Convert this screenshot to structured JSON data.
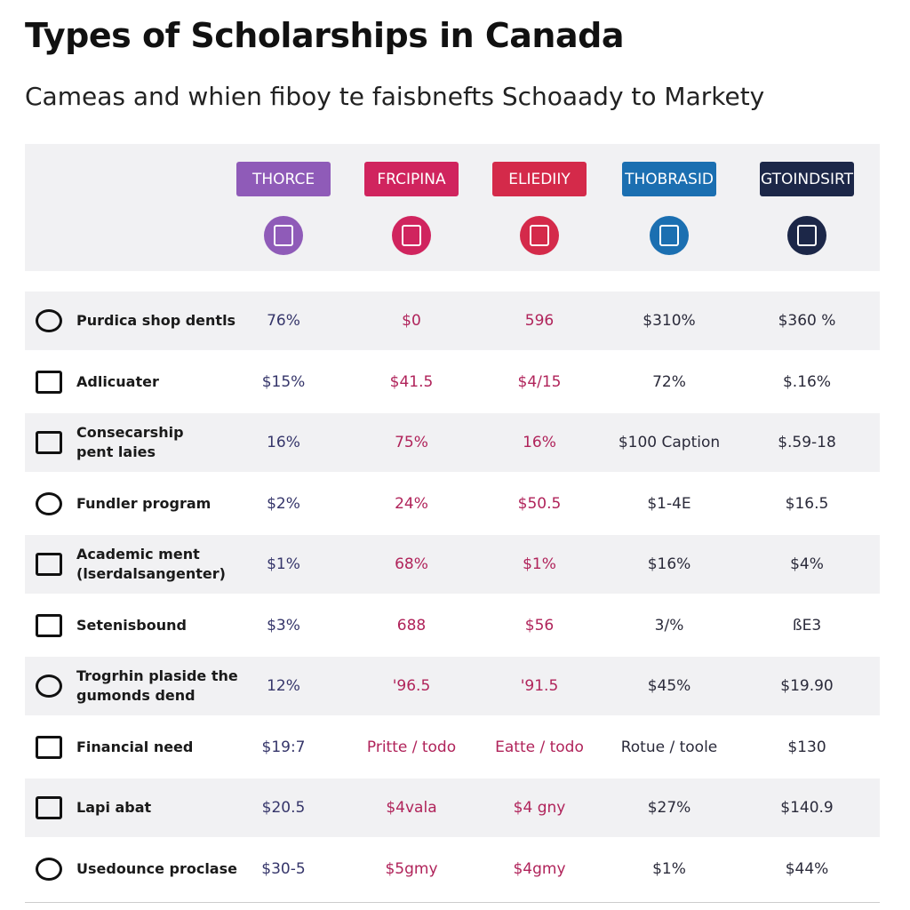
{
  "header": {
    "title": "Types of Scholarships in Canada",
    "subtitle": "Cameas and whien fiboy te faisbnefts Schoaady to Markety"
  },
  "table": {
    "columns": [
      {
        "label": "THORCE",
        "color": "#8f5bb8",
        "text_color": "#35356a"
      },
      {
        "label": "FRCIPINA",
        "color": "#d0245e",
        "text_color": "#b0235a"
      },
      {
        "label": "ELIEDIIY",
        "color": "#d42a4a",
        "text_color": "#b0235a"
      },
      {
        "label": "THOBRASID",
        "color": "#1b6fb1",
        "text_color": "#2a2a3a"
      },
      {
        "label": "GTOINDSIRT",
        "color": "#1c2748",
        "text_color": "#2a2a3a"
      }
    ],
    "rows": [
      {
        "label": [
          "Purdica shop dentls"
        ],
        "cells": [
          "76%",
          "$0",
          "596",
          "$310%",
          "$360 %"
        ]
      },
      {
        "label": [
          "Adlicuater"
        ],
        "cells": [
          "$15%",
          "$41.5",
          "$4/15",
          "72%",
          "$.16%"
        ]
      },
      {
        "label": [
          "Consecarship",
          "pent laies"
        ],
        "cells": [
          "16%",
          "75%",
          "16%",
          "$100 Caption",
          "$.59-18"
        ]
      },
      {
        "label": [
          "Fundler program"
        ],
        "cells": [
          "$2%",
          "24%",
          "$50.5",
          "$1-4E",
          "$16.5"
        ]
      },
      {
        "label": [
          "Academic ment",
          "(lserdalsangenter)"
        ],
        "cells": [
          "$1%",
          "68%",
          "$1%",
          "$16%",
          "$4%"
        ]
      },
      {
        "label": [
          "Setenisbound"
        ],
        "cells": [
          "$3%",
          "688",
          "$56",
          "3/%",
          "ßE3"
        ]
      },
      {
        "label": [
          "Trogrhin plaside the",
          "gumonds dend"
        ],
        "cells": [
          "12%",
          "'96.5",
          "'91.5",
          "$45%",
          "$19.90"
        ]
      },
      {
        "label": [
          "Financial need"
        ],
        "cells": [
          "$19:7",
          "Pritte / todo",
          "Eatte / todo",
          "Rotue / toole",
          "$130"
        ]
      },
      {
        "label": [
          "Lapi abat"
        ],
        "cells": [
          "$20.5",
          "$4vala",
          "$4 gny",
          "$27%",
          "$140.9"
        ]
      },
      {
        "label": [
          "Usedounce proclase"
        ],
        "cells": [
          "$30-5",
          "$5gmy",
          "$4gmy",
          "$1%",
          "$44%"
        ]
      }
    ]
  }
}
